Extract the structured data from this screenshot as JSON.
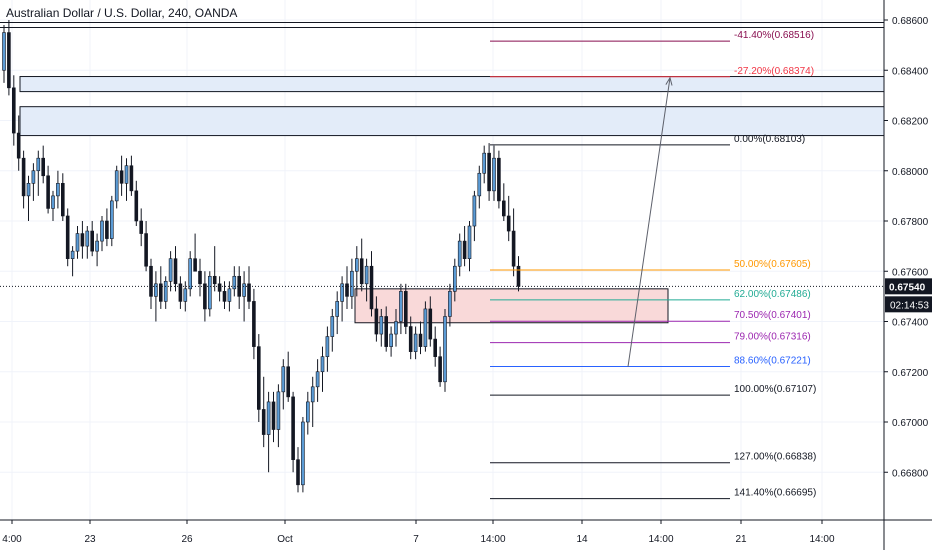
{
  "header": {
    "title": "Australian Dollar / U.S. Dollar, 240, OANDA"
  },
  "colors": {
    "bull": "#5b9bd5",
    "bear": "#131722",
    "grid": "#f0f3fa",
    "axis_text": "#131722",
    "zone_blue_fill": "#e3ecf9",
    "zone_red_fill": "#f9d9d9",
    "price_tag_bg": "#131722",
    "fib_41": "#880e4f",
    "fib_27": "#f23645",
    "fib_0": "#131722",
    "fib_50": "#ff9800",
    "fib_62": "#22ab94",
    "fib_70": "#9c27b0",
    "fib_79": "#9c27b0",
    "fib_88": "#2962ff",
    "fib_100": "#131722",
    "fib_127": "#131722",
    "fib_141": "#131722"
  },
  "chart_data": {
    "type": "candlestick",
    "title": "Australian Dollar / U.S. Dollar, 240, OANDA",
    "ylim": [
      0.667,
      0.6868
    ],
    "y_ticks": [
      "0.68600",
      "0.68400",
      "0.68200",
      "0.68000",
      "0.67800",
      "0.67600",
      "0.67400",
      "0.67200",
      "0.67000",
      "0.66800"
    ],
    "x_ticks": [
      "4:00",
      "23",
      "26",
      "Oct",
      "7",
      "14:00",
      "14",
      "14:00",
      "21",
      "14:00"
    ],
    "current_price": "0.67540",
    "countdown": "02:14:53",
    "fib_levels": [
      {
        "label": "-41.40%(0.68516)",
        "price": 0.68516,
        "color": "fib_41"
      },
      {
        "label": "-27.20%(0.68374)",
        "price": 0.68374,
        "color": "fib_27"
      },
      {
        "label": "0.00%(0.68103)",
        "price": 0.68103,
        "color": "fib_0"
      },
      {
        "label": "50.00%(0.67605)",
        "price": 0.67605,
        "color": "fib_50"
      },
      {
        "label": "62.00%(0.67486)",
        "price": 0.67486,
        "color": "fib_62"
      },
      {
        "label": "70.50%(0.67401)",
        "price": 0.67401,
        "color": "fib_70"
      },
      {
        "label": "79.00%(0.67316)",
        "price": 0.67316,
        "color": "fib_79"
      },
      {
        "label": "88.60%(0.67221)",
        "price": 0.67221,
        "color": "fib_88"
      },
      {
        "label": "100.00%(0.67107)",
        "price": 0.67107,
        "color": "fib_100"
      },
      {
        "label": "127.00%(0.66838)",
        "price": 0.66838,
        "color": "fib_127"
      },
      {
        "label": "141.40%(0.66695)",
        "price": 0.66695,
        "color": "fib_141"
      }
    ],
    "zones": [
      {
        "name": "supply-zone-upper",
        "top": 0.68375,
        "bottom": 0.68315,
        "color": "zone_blue_fill"
      },
      {
        "name": "supply-zone-lower",
        "top": 0.68255,
        "bottom": 0.6814,
        "color": "zone_blue_fill"
      },
      {
        "name": "demand-zone",
        "top": 0.6753,
        "bottom": 0.67395,
        "color": "zone_red_fill"
      }
    ],
    "horizontal_lines": [
      0.68582,
      0.68578
    ],
    "arrow": {
      "from": 0.6722,
      "to": 0.6837
    },
    "candles": [
      {
        "o": 0.684,
        "h": 0.6858,
        "l": 0.6835,
        "c": 0.6855
      },
      {
        "o": 0.6855,
        "h": 0.686,
        "l": 0.683,
        "c": 0.6833
      },
      {
        "o": 0.6833,
        "h": 0.6838,
        "l": 0.681,
        "c": 0.6815
      },
      {
        "o": 0.6815,
        "h": 0.6822,
        "l": 0.68,
        "c": 0.6805
      },
      {
        "o": 0.6805,
        "h": 0.6808,
        "l": 0.6785,
        "c": 0.679
      },
      {
        "o": 0.679,
        "h": 0.6798,
        "l": 0.678,
        "c": 0.6795
      },
      {
        "o": 0.6795,
        "h": 0.6803,
        "l": 0.6788,
        "c": 0.68
      },
      {
        "o": 0.68,
        "h": 0.6808,
        "l": 0.679,
        "c": 0.6805
      },
      {
        "o": 0.6805,
        "h": 0.681,
        "l": 0.6795,
        "c": 0.6798
      },
      {
        "o": 0.6798,
        "h": 0.6802,
        "l": 0.6783,
        "c": 0.6785
      },
      {
        "o": 0.6785,
        "h": 0.6792,
        "l": 0.678,
        "c": 0.679
      },
      {
        "o": 0.679,
        "h": 0.68,
        "l": 0.6785,
        "c": 0.6795
      },
      {
        "o": 0.6795,
        "h": 0.6799,
        "l": 0.678,
        "c": 0.6782
      },
      {
        "o": 0.6782,
        "h": 0.6785,
        "l": 0.6762,
        "c": 0.6765
      },
      {
        "o": 0.6765,
        "h": 0.677,
        "l": 0.6758,
        "c": 0.6768
      },
      {
        "o": 0.6768,
        "h": 0.6778,
        "l": 0.6765,
        "c": 0.6775
      },
      {
        "o": 0.6775,
        "h": 0.678,
        "l": 0.6765,
        "c": 0.677
      },
      {
        "o": 0.677,
        "h": 0.6778,
        "l": 0.6765,
        "c": 0.6776
      },
      {
        "o": 0.6776,
        "h": 0.678,
        "l": 0.6766,
        "c": 0.6768
      },
      {
        "o": 0.6768,
        "h": 0.6775,
        "l": 0.6762,
        "c": 0.6772
      },
      {
        "o": 0.6772,
        "h": 0.6782,
        "l": 0.6768,
        "c": 0.678
      },
      {
        "o": 0.678,
        "h": 0.6785,
        "l": 0.677,
        "c": 0.6773
      },
      {
        "o": 0.6773,
        "h": 0.679,
        "l": 0.677,
        "c": 0.6788
      },
      {
        "o": 0.6788,
        "h": 0.6802,
        "l": 0.6785,
        "c": 0.68
      },
      {
        "o": 0.68,
        "h": 0.6806,
        "l": 0.679,
        "c": 0.6795
      },
      {
        "o": 0.6795,
        "h": 0.6805,
        "l": 0.6788,
        "c": 0.6802
      },
      {
        "o": 0.6802,
        "h": 0.6806,
        "l": 0.679,
        "c": 0.6792
      },
      {
        "o": 0.6792,
        "h": 0.6796,
        "l": 0.6778,
        "c": 0.678
      },
      {
        "o": 0.678,
        "h": 0.6785,
        "l": 0.677,
        "c": 0.6775
      },
      {
        "o": 0.6775,
        "h": 0.678,
        "l": 0.676,
        "c": 0.6762
      },
      {
        "o": 0.6762,
        "h": 0.6765,
        "l": 0.6745,
        "c": 0.675
      },
      {
        "o": 0.675,
        "h": 0.676,
        "l": 0.674,
        "c": 0.6755
      },
      {
        "o": 0.6755,
        "h": 0.6762,
        "l": 0.6745,
        "c": 0.6748
      },
      {
        "o": 0.6748,
        "h": 0.6758,
        "l": 0.6745,
        "c": 0.6756
      },
      {
        "o": 0.6756,
        "h": 0.6768,
        "l": 0.6752,
        "c": 0.6765
      },
      {
        "o": 0.6765,
        "h": 0.677,
        "l": 0.6752,
        "c": 0.6755
      },
      {
        "o": 0.6755,
        "h": 0.6758,
        "l": 0.6745,
        "c": 0.6748
      },
      {
        "o": 0.6748,
        "h": 0.6756,
        "l": 0.6744,
        "c": 0.6753
      },
      {
        "o": 0.6753,
        "h": 0.6768,
        "l": 0.675,
        "c": 0.6765
      },
      {
        "o": 0.6765,
        "h": 0.6775,
        "l": 0.676,
        "c": 0.676
      },
      {
        "o": 0.676,
        "h": 0.6765,
        "l": 0.675,
        "c": 0.6755
      },
      {
        "o": 0.6755,
        "h": 0.676,
        "l": 0.674,
        "c": 0.6745
      },
      {
        "o": 0.6745,
        "h": 0.676,
        "l": 0.6742,
        "c": 0.6758
      },
      {
        "o": 0.6758,
        "h": 0.677,
        "l": 0.6752,
        "c": 0.6755
      },
      {
        "o": 0.6755,
        "h": 0.6758,
        "l": 0.6748,
        "c": 0.6752
      },
      {
        "o": 0.6752,
        "h": 0.6756,
        "l": 0.6745,
        "c": 0.6748
      },
      {
        "o": 0.6748,
        "h": 0.6756,
        "l": 0.6744,
        "c": 0.6753
      },
      {
        "o": 0.6753,
        "h": 0.6762,
        "l": 0.675,
        "c": 0.6758
      },
      {
        "o": 0.6758,
        "h": 0.6762,
        "l": 0.6745,
        "c": 0.675
      },
      {
        "o": 0.675,
        "h": 0.676,
        "l": 0.674,
        "c": 0.6755
      },
      {
        "o": 0.6755,
        "h": 0.6762,
        "l": 0.6745,
        "c": 0.6748
      },
      {
        "o": 0.6748,
        "h": 0.6753,
        "l": 0.6725,
        "c": 0.673
      },
      {
        "o": 0.673,
        "h": 0.6735,
        "l": 0.67,
        "c": 0.6705
      },
      {
        "o": 0.6705,
        "h": 0.6718,
        "l": 0.669,
        "c": 0.6695
      },
      {
        "o": 0.6695,
        "h": 0.6712,
        "l": 0.668,
        "c": 0.6708
      },
      {
        "o": 0.6708,
        "h": 0.6712,
        "l": 0.6692,
        "c": 0.6697
      },
      {
        "o": 0.6697,
        "h": 0.6715,
        "l": 0.669,
        "c": 0.6712
      },
      {
        "o": 0.6712,
        "h": 0.6725,
        "l": 0.6705,
        "c": 0.6722
      },
      {
        "o": 0.6722,
        "h": 0.6728,
        "l": 0.6708,
        "c": 0.671
      },
      {
        "o": 0.671,
        "h": 0.6712,
        "l": 0.668,
        "c": 0.6685
      },
      {
        "o": 0.6685,
        "h": 0.669,
        "l": 0.6672,
        "c": 0.6675
      },
      {
        "o": 0.6675,
        "h": 0.6702,
        "l": 0.6672,
        "c": 0.67
      },
      {
        "o": 0.67,
        "h": 0.6712,
        "l": 0.6695,
        "c": 0.6708
      },
      {
        "o": 0.6708,
        "h": 0.6718,
        "l": 0.6698,
        "c": 0.6714
      },
      {
        "o": 0.6714,
        "h": 0.6725,
        "l": 0.6708,
        "c": 0.672
      },
      {
        "o": 0.672,
        "h": 0.673,
        "l": 0.6712,
        "c": 0.6726
      },
      {
        "o": 0.6726,
        "h": 0.6738,
        "l": 0.672,
        "c": 0.6734
      },
      {
        "o": 0.6734,
        "h": 0.6745,
        "l": 0.6728,
        "c": 0.6742
      },
      {
        "o": 0.6742,
        "h": 0.6752,
        "l": 0.6735,
        "c": 0.6748
      },
      {
        "o": 0.6748,
        "h": 0.6758,
        "l": 0.674,
        "c": 0.6755
      },
      {
        "o": 0.6755,
        "h": 0.6762,
        "l": 0.6745,
        "c": 0.675
      },
      {
        "o": 0.675,
        "h": 0.6765,
        "l": 0.6745,
        "c": 0.676
      },
      {
        "o": 0.676,
        "h": 0.677,
        "l": 0.675,
        "c": 0.6765
      },
      {
        "o": 0.6765,
        "h": 0.6773,
        "l": 0.6752,
        "c": 0.6755
      },
      {
        "o": 0.6755,
        "h": 0.6765,
        "l": 0.6748,
        "c": 0.6762
      },
      {
        "o": 0.6762,
        "h": 0.6768,
        "l": 0.6742,
        "c": 0.6745
      },
      {
        "o": 0.6745,
        "h": 0.675,
        "l": 0.6732,
        "c": 0.6735
      },
      {
        "o": 0.6735,
        "h": 0.6745,
        "l": 0.673,
        "c": 0.6742
      },
      {
        "o": 0.6742,
        "h": 0.6746,
        "l": 0.6728,
        "c": 0.673
      },
      {
        "o": 0.673,
        "h": 0.6738,
        "l": 0.6726,
        "c": 0.6735
      },
      {
        "o": 0.6735,
        "h": 0.6745,
        "l": 0.673,
        "c": 0.674
      },
      {
        "o": 0.674,
        "h": 0.6755,
        "l": 0.6735,
        "c": 0.6752
      },
      {
        "o": 0.6752,
        "h": 0.6755,
        "l": 0.6735,
        "c": 0.6738
      },
      {
        "o": 0.6738,
        "h": 0.6742,
        "l": 0.6725,
        "c": 0.6728
      },
      {
        "o": 0.6728,
        "h": 0.6738,
        "l": 0.6725,
        "c": 0.6735
      },
      {
        "o": 0.6735,
        "h": 0.674,
        "l": 0.6727,
        "c": 0.673
      },
      {
        "o": 0.673,
        "h": 0.6748,
        "l": 0.6728,
        "c": 0.6745
      },
      {
        "o": 0.6745,
        "h": 0.675,
        "l": 0.673,
        "c": 0.6733
      },
      {
        "o": 0.6733,
        "h": 0.6738,
        "l": 0.6722,
        "c": 0.6726
      },
      {
        "o": 0.6726,
        "h": 0.673,
        "l": 0.6714,
        "c": 0.6716
      },
      {
        "o": 0.6716,
        "h": 0.6745,
        "l": 0.6712,
        "c": 0.6742
      },
      {
        "o": 0.6742,
        "h": 0.6755,
        "l": 0.6738,
        "c": 0.6752
      },
      {
        "o": 0.6752,
        "h": 0.6765,
        "l": 0.6748,
        "c": 0.6762
      },
      {
        "o": 0.6762,
        "h": 0.6775,
        "l": 0.6758,
        "c": 0.6772
      },
      {
        "o": 0.6772,
        "h": 0.6778,
        "l": 0.6762,
        "c": 0.6765
      },
      {
        "o": 0.6765,
        "h": 0.678,
        "l": 0.676,
        "c": 0.6778
      },
      {
        "o": 0.6778,
        "h": 0.6792,
        "l": 0.6772,
        "c": 0.679
      },
      {
        "o": 0.679,
        "h": 0.6802,
        "l": 0.6785,
        "c": 0.6799
      },
      {
        "o": 0.6799,
        "h": 0.681,
        "l": 0.6795,
        "c": 0.6807
      },
      {
        "o": 0.6807,
        "h": 0.6811,
        "l": 0.6788,
        "c": 0.6792
      },
      {
        "o": 0.6792,
        "h": 0.681,
        "l": 0.6788,
        "c": 0.6805
      },
      {
        "o": 0.6805,
        "h": 0.6808,
        "l": 0.6785,
        "c": 0.6788
      },
      {
        "o": 0.6788,
        "h": 0.6795,
        "l": 0.678,
        "c": 0.6782
      },
      {
        "o": 0.6782,
        "h": 0.679,
        "l": 0.6772,
        "c": 0.6776
      },
      {
        "o": 0.6776,
        "h": 0.6785,
        "l": 0.6758,
        "c": 0.6762
      },
      {
        "o": 0.6762,
        "h": 0.6766,
        "l": 0.6752,
        "c": 0.6754
      }
    ]
  }
}
